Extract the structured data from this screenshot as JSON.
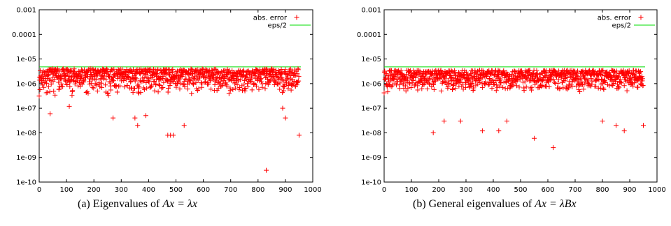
{
  "chart_data": [
    {
      "type": "scatter",
      "caption_prefix": "(a)  Eigenvalues of ",
      "caption_math": "Ax = λx",
      "x_ticks": [
        0,
        100,
        200,
        300,
        400,
        500,
        600,
        700,
        800,
        900,
        1000
      ],
      "y_ticks": [
        "0.001",
        "0.0001",
        "1e-05",
        "1e-06",
        "1e-07",
        "1e-08",
        "1e-09",
        "1e-10"
      ],
      "xlim": [
        0,
        1000
      ],
      "ylim": [
        1e-10,
        0.001
      ],
      "yscale": "log",
      "legend_position": "top-right",
      "series": [
        {
          "name": "abs. error",
          "marker": "plus",
          "color": "#ff0000",
          "points_count": 950,
          "typical_range": [
            3e-07,
            4e-06
          ],
          "outliers": [
            [
              40,
              6e-08
            ],
            [
              110,
              1.2e-07
            ],
            [
              270,
              4e-08
            ],
            [
              350,
              4e-08
            ],
            [
              360,
              2e-08
            ],
            [
              390,
              5e-08
            ],
            [
              470,
              8e-09
            ],
            [
              480,
              8e-09
            ],
            [
              490,
              8e-09
            ],
            [
              530,
              2e-08
            ],
            [
              830,
              3e-10
            ],
            [
              890,
              1e-07
            ],
            [
              900,
              4e-08
            ],
            [
              950,
              8e-09
            ]
          ]
        },
        {
          "name": "eps/2",
          "type": "line",
          "color": "#00dd00",
          "value": 4.8e-06
        }
      ]
    },
    {
      "type": "scatter",
      "caption_prefix": "(b)  General eigenvalues of ",
      "caption_math": "Ax = λBx",
      "x_ticks": [
        0,
        100,
        200,
        300,
        400,
        500,
        600,
        700,
        800,
        900,
        1000
      ],
      "y_ticks": [
        "0.001",
        "0.0001",
        "1e-05",
        "1e-06",
        "1e-07",
        "1e-08",
        "1e-09",
        "1e-10"
      ],
      "xlim": [
        0,
        1000
      ],
      "ylim": [
        1e-10,
        0.001
      ],
      "yscale": "log",
      "legend_position": "top-right",
      "series": [
        {
          "name": "abs. error",
          "marker": "plus",
          "color": "#ff0000",
          "points_count": 950,
          "typical_range": [
            4e-07,
            3.5e-06
          ],
          "outliers": [
            [
              180,
              1e-08
            ],
            [
              220,
              3e-08
            ],
            [
              280,
              3e-08
            ],
            [
              360,
              1.2e-08
            ],
            [
              420,
              1.2e-08
            ],
            [
              450,
              3e-08
            ],
            [
              550,
              6e-09
            ],
            [
              620,
              2.5e-09
            ],
            [
              800,
              3e-08
            ],
            [
              850,
              2e-08
            ],
            [
              880,
              1.2e-08
            ],
            [
              950,
              2e-08
            ]
          ]
        },
        {
          "name": "eps/2",
          "type": "line",
          "color": "#00dd00",
          "value": 4.8e-06
        }
      ]
    }
  ]
}
